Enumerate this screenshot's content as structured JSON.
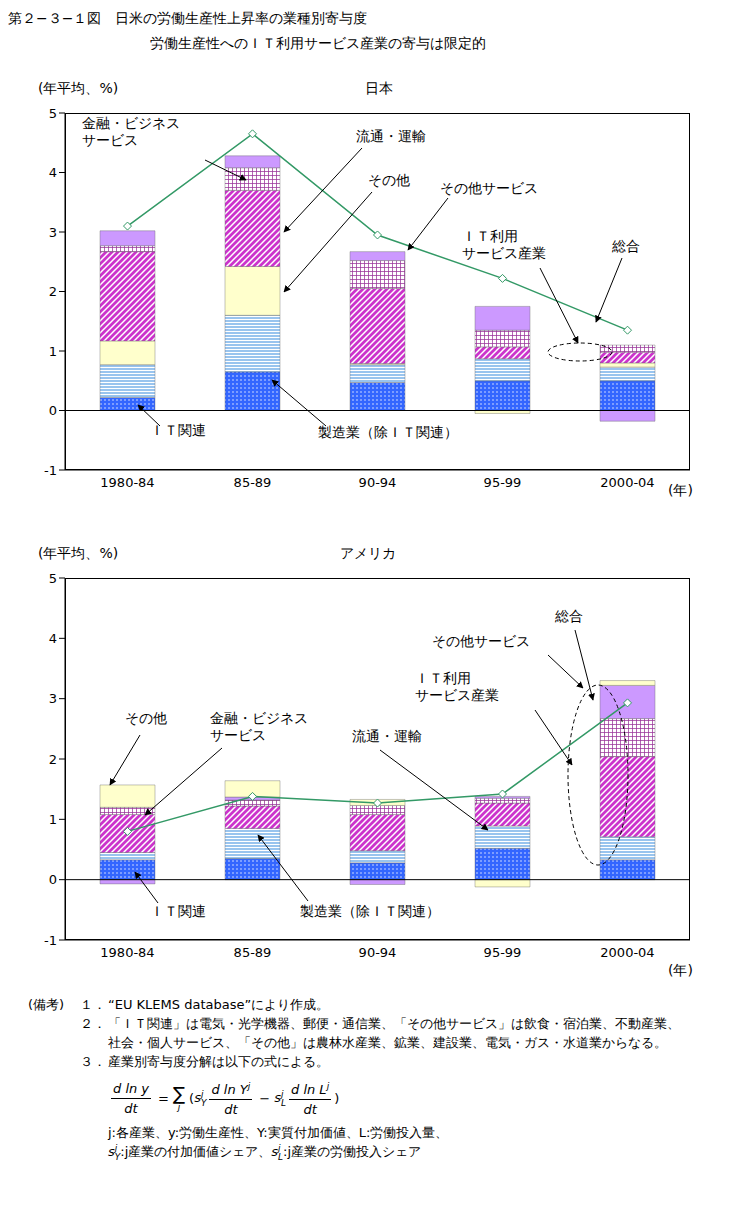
{
  "title": "第２−３−１図　日米の労働生産性上昇率の業種別寄与度",
  "subtitle": "労働生産性へのＩＴ利用サービス産業の寄与は限定的",
  "chart_data": [
    {
      "type": "bar",
      "stacked": true,
      "title": "日本",
      "y_label": "(年平均、%)",
      "x_label": "(年)",
      "categories": [
        "1980-84",
        "85-89",
        "90-94",
        "95-99",
        "2000-04"
      ],
      "ylim": [
        -1,
        5
      ],
      "yticks": [
        -1,
        0,
        1,
        2,
        3,
        4,
        5
      ],
      "series": [
        {
          "name": "ＩＴ関連",
          "color": "#3366ff",
          "values": [
            0.22,
            0.65,
            0.47,
            0.5,
            0.5
          ]
        },
        {
          "name": "製造業（除ＩＴ関連）",
          "color": "#99c4ee",
          "values": [
            0.55,
            0.95,
            0.3,
            0.37,
            0.23
          ]
        },
        {
          "name": "その他",
          "color": "#ffffcc",
          "values": [
            0.4,
            0.82,
            0.02,
            -0.05,
            0.07
          ]
        },
        {
          "name": "流通・運輸",
          "color": "#cc33cc",
          "values": [
            1.5,
            1.28,
            1.26,
            0.2,
            0.18
          ]
        },
        {
          "name": "金融・ビジネス\nサービス",
          "color": "#993399",
          "values": [
            0.1,
            0.38,
            0.47,
            0.28,
            0.12
          ]
        },
        {
          "name": "その他サービス",
          "color": "#cc99ff",
          "values": [
            0.25,
            0.2,
            0.15,
            0.4,
            -0.18
          ]
        },
        {
          "name": "総合",
          "type": "line",
          "color": "#339966",
          "marker": "diamond",
          "values": [
            3.1,
            4.65,
            2.95,
            2.22,
            1.35
          ]
        }
      ],
      "annotations": [
        "ＩＴ利用\nサービス産業"
      ]
    },
    {
      "type": "bar",
      "stacked": true,
      "title": "アメリカ",
      "y_label": "(年平均、%)",
      "x_label": "(年)",
      "categories": [
        "1980-84",
        "85-89",
        "90-94",
        "95-99",
        "2000-04"
      ],
      "ylim": [
        -1,
        5
      ],
      "yticks": [
        -1,
        0,
        1,
        2,
        3,
        4,
        5
      ],
      "series": [
        {
          "name": "ＩＴ関連",
          "color": "#3366ff",
          "values": [
            0.33,
            0.35,
            0.28,
            0.52,
            0.33
          ]
        },
        {
          "name": "製造業（除ＩＴ関連）",
          "color": "#99c4ee",
          "values": [
            0.12,
            0.5,
            0.2,
            0.37,
            0.38
          ]
        },
        {
          "name": "流通・運輸",
          "color": "#cc33cc",
          "values": [
            0.63,
            0.37,
            0.6,
            0.38,
            1.33
          ]
        },
        {
          "name": "金融・ビジネス\nサービス",
          "color": "#993399",
          "values": [
            0.12,
            0.1,
            0.15,
            0.08,
            0.63
          ]
        },
        {
          "name": "その他サービス",
          "color": "#cc99ff",
          "values": [
            -0.07,
            0.05,
            -0.08,
            0.03,
            0.55
          ]
        },
        {
          "name": "その他",
          "color": "#ffffcc",
          "values": [
            0.37,
            0.27,
            0.1,
            -0.12,
            0.08
          ]
        },
        {
          "name": "総合",
          "type": "line",
          "color": "#339966",
          "marker": "diamond",
          "values": [
            0.8,
            1.38,
            1.27,
            1.42,
            2.93
          ]
        }
      ],
      "annotations": [
        "ＩＴ利用\nサービス産業"
      ]
    }
  ],
  "notes": {
    "label": "(備考)",
    "items": [
      {
        "num": "１．",
        "text": "“EU KLEMS database”により作成。"
      },
      {
        "num": "２．",
        "text": "「ＩＴ関連」は電気・光学機器、郵便・通信業、「その他サービス」は飲食・宿泊業、不動産業、社会・個人サービス、「その他」は農林水産業、鉱業、建設業、電気・ガス・水道業からなる。"
      },
      {
        "num": "３．",
        "text": "産業別寄与度分解は以下の式による。"
      }
    ],
    "formula": {
      "lhs": [
        "d ln y",
        "dt"
      ],
      "eq": "=",
      "sum": "∑",
      "index": "j",
      "open": "(",
      "close": ")",
      "terms": [
        {
          "sign": "",
          "share": [
            "s",
            "Y",
            "j"
          ],
          "frac": [
            "d ln Y",
            "j",
            "dt"
          ]
        },
        {
          "sign": "−",
          "share": [
            "s",
            "L",
            "j"
          ],
          "frac": [
            "d ln L",
            "j",
            "dt"
          ]
        }
      ]
    },
    "definitions": [
      "j:各産業、y:労働生産性、Y:実質付加価値、L:労働投入量、",
      [
        {
          "sym": [
            "s",
            "Y",
            "j"
          ],
          "text": ":j産業の付加価値シェア、"
        },
        {
          "sym": [
            "s",
            "L",
            "j"
          ],
          "text": ":j産業の労働投入シェア"
        }
      ]
    ]
  }
}
